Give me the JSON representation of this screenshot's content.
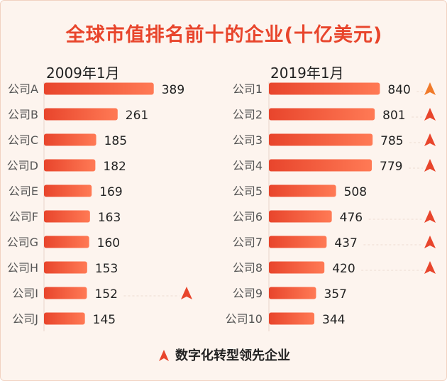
{
  "title": "全球市值排名前十的企业(十亿美元)",
  "legend_label": "数字化转型领先企业",
  "colors": {
    "bar_dark": "#e8452c",
    "bar_light": "#ff7a55",
    "marker": "#e8452c",
    "marker_top": "#f07a2a",
    "text": "#222222",
    "label": "#555555"
  },
  "chart_data": [
    {
      "type": "bar",
      "orientation": "horizontal",
      "title": "2009年1月",
      "categories": [
        "公司A",
        "公司B",
        "公司C",
        "公司D",
        "公司E",
        "公司F",
        "公司G",
        "公司H",
        "公司I",
        "公司J"
      ],
      "values": [
        389,
        261,
        185,
        182,
        169,
        163,
        160,
        153,
        152,
        145
      ],
      "digital_leader": [
        false,
        false,
        false,
        false,
        false,
        false,
        false,
        false,
        true,
        false
      ]
    },
    {
      "type": "bar",
      "orientation": "horizontal",
      "title": "2019年1月",
      "categories": [
        "公司1",
        "公司2",
        "公司3",
        "公司4",
        "公司5",
        "公司6",
        "公司7",
        "公司8",
        "公司9",
        "公司10"
      ],
      "values": [
        840,
        801,
        785,
        779,
        508,
        476,
        437,
        420,
        357,
        344
      ],
      "digital_leader": [
        true,
        true,
        true,
        true,
        false,
        true,
        true,
        true,
        false,
        false
      ]
    }
  ]
}
